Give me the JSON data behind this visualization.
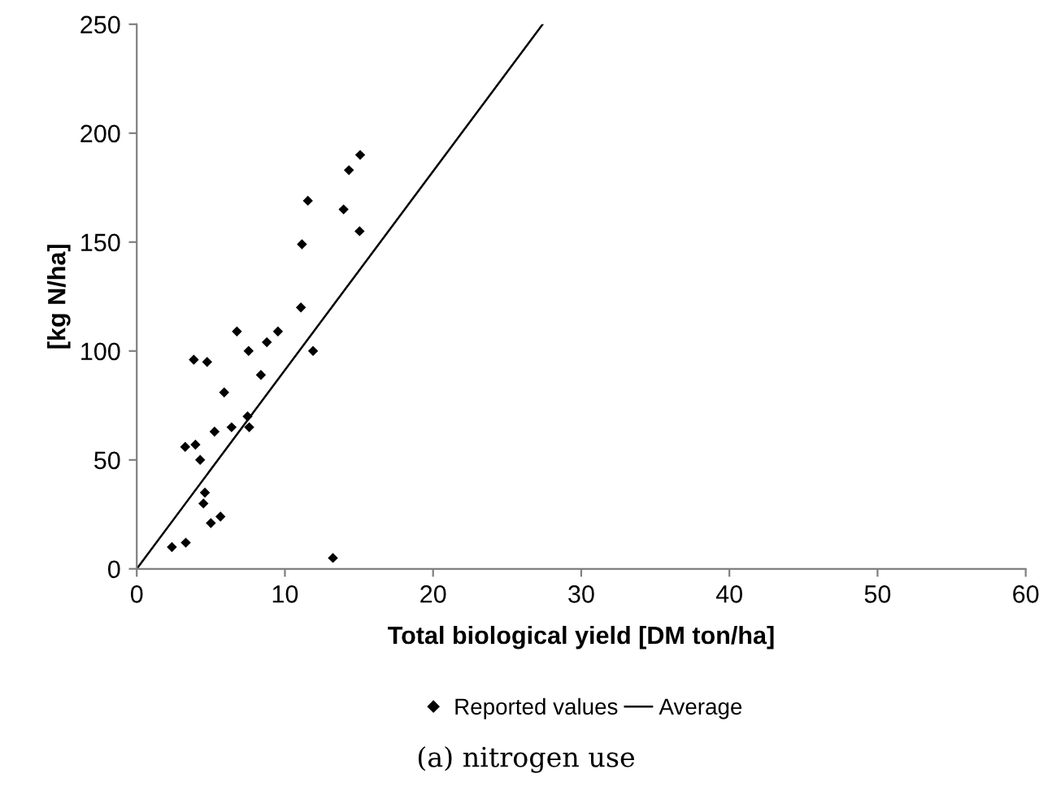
{
  "chart_data": {
    "type": "scatter",
    "xlabel": "Total biological yield [DM ton/ha]",
    "ylabel": "[kg N/ha]",
    "series": [
      {
        "name": "Reported values",
        "color": "#000000",
        "marker": "diamond",
        "x": [
          2.37,
          3.31,
          5.0,
          5.65,
          4.5,
          4.6,
          4.28,
          3.27,
          3.96,
          5.25,
          6.4,
          7.59,
          7.48,
          5.9,
          8.38,
          3.85,
          4.75,
          7.55,
          11.9,
          8.78,
          6.76,
          9.53,
          11.08,
          13.24,
          11.15,
          15.04,
          15.08,
          14.32,
          11.55,
          13.96
        ],
        "values": [
          10,
          12,
          21,
          24,
          30,
          35,
          50,
          56,
          57,
          63,
          65,
          65,
          70,
          81,
          89,
          96,
          95,
          100,
          100,
          104,
          109,
          109,
          120,
          5,
          149,
          155,
          190,
          183,
          169,
          165
        ]
      },
      {
        "name": "Average",
        "type": "line",
        "color": "#000000",
        "marker": "none",
        "line_style": "solid",
        "x": [
          0,
          27.4
        ],
        "values": [
          0,
          250
        ]
      }
    ],
    "xlim": [
      0,
      60
    ],
    "xticks": [
      0,
      10,
      20,
      30,
      40,
      50,
      60
    ],
    "ylim": [
      0,
      250
    ],
    "yticks": [
      0,
      50,
      100,
      150,
      200,
      250
    ],
    "grid": false,
    "legend": "bottom",
    "annotations": [
      "(a) nitrogen use"
    ]
  }
}
